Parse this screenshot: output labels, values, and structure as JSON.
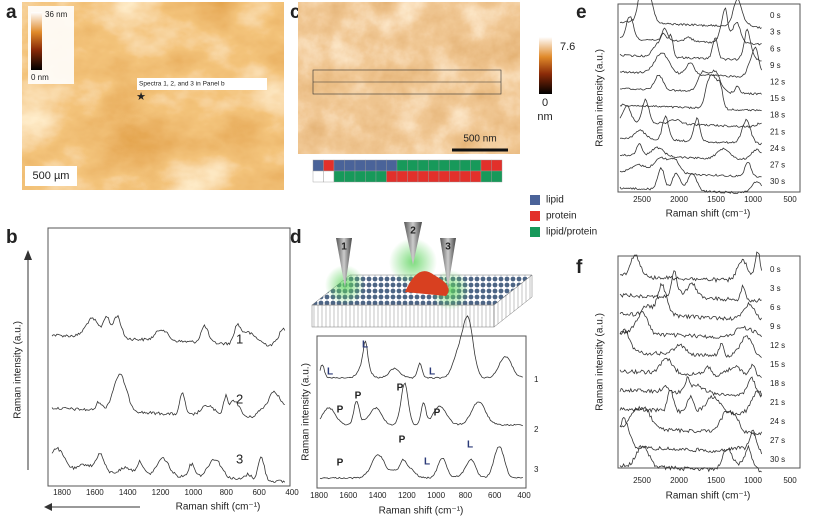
{
  "panels": {
    "a": {
      "label": "a",
      "colorbar_max": "36 nm",
      "colorbar_min": "0 nm",
      "annotation": "Spectra 1, 2, and 3 in Panel b",
      "scale_bar": "500 µm"
    },
    "b": {
      "label": "b",
      "y_label": "Raman intensity (a.u.)",
      "x_label": "Raman shift (cm⁻¹)",
      "x_ticks": [
        1800,
        1600,
        1400,
        1200,
        1000,
        800,
        600,
        400
      ],
      "spectra": [
        "1",
        "2",
        "3"
      ]
    },
    "c": {
      "label": "c",
      "colorbar_max": "7.6",
      "colorbar_min": "0",
      "colorbar_unit": "nm",
      "scale_bar": "500 nm",
      "legend": [
        {
          "name": "lipid",
          "color": "#4a6399"
        },
        {
          "name": "protein",
          "color": "#e2302b"
        },
        {
          "name": "lipid/protein",
          "color": "#17995a"
        }
      ]
    },
    "d": {
      "label": "d",
      "tips": [
        "1",
        "2",
        "3"
      ],
      "y_label": "Raman intensity (a.u.)",
      "x_label": "Raman shift (cm⁻¹)",
      "x_ticks": [
        1800,
        1600,
        1400,
        1200,
        1000,
        800,
        600,
        400
      ],
      "spectra": [
        "1",
        "2",
        "3"
      ],
      "annotations": [
        "L",
        "L",
        "L",
        "P",
        "P",
        "P",
        "P",
        "P",
        "P",
        "L",
        "L"
      ]
    },
    "e": {
      "label": "e",
      "times": [
        "0 s",
        "3 s",
        "6 s",
        "9 s",
        "12 s",
        "15 s",
        "18 s",
        "21 s",
        "24 s",
        "27 s",
        "30 s"
      ],
      "x_ticks": [
        2500,
        2000,
        1500,
        1000,
        500
      ],
      "y_label": "Raman intensity (a.u.)",
      "x_label": "Raman shift (cm⁻¹)"
    },
    "f": {
      "label": "f",
      "times": [
        "0 s",
        "3 s",
        "6 s",
        "9 s",
        "12 s",
        "15 s",
        "18 s",
        "21 s",
        "24 s",
        "27 s",
        "30 s"
      ],
      "x_ticks": [
        2500,
        2000,
        1500,
        1000,
        500
      ],
      "y_label": "Raman intensity (a.u.)",
      "x_label": "Raman shift (cm⁻¹)"
    }
  }
}
